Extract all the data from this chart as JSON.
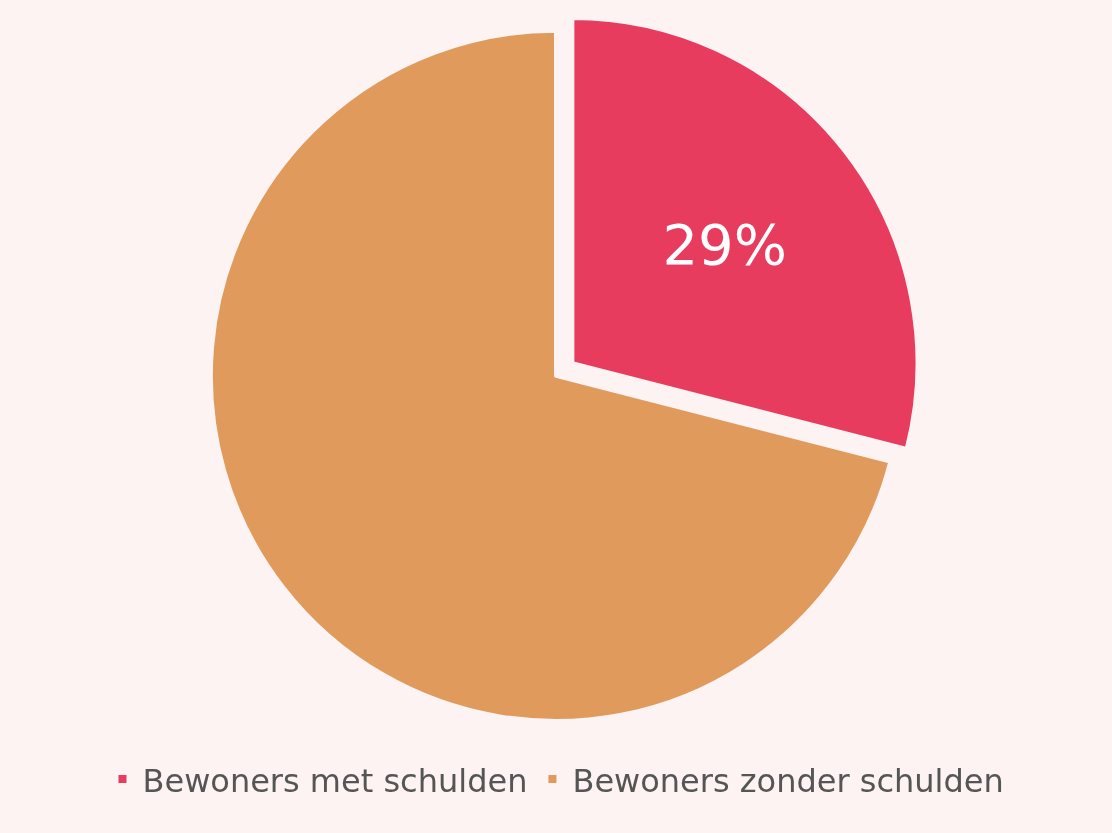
{
  "chart_data": {
    "type": "pie",
    "categories": [
      "Bewoners met schulden",
      "Bewoners zonder schulden"
    ],
    "values": [
      29,
      71
    ],
    "colors": [
      "#e83c5e",
      "#e09a5c"
    ],
    "value_labels": [
      "29%",
      null
    ],
    "legend": "bottom"
  }
}
